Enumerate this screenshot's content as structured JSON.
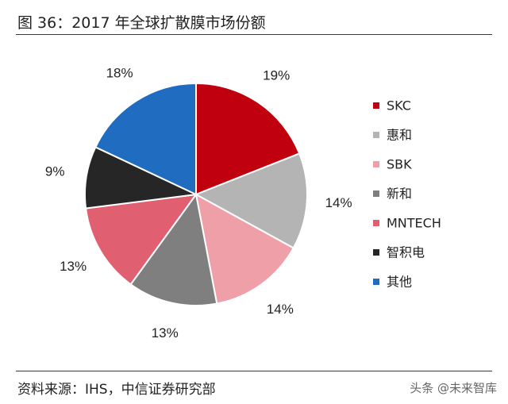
{
  "title": "图 36：2017 年全球扩散膜市场份额",
  "source": "资料来源：IHS，中信证券研究部",
  "watermark": "头条 @未来智库",
  "chart_data": {
    "type": "pie",
    "categories": [
      "SKC",
      "惠和",
      "SBK",
      "新和",
      "MNTECH",
      "智积电",
      "其他"
    ],
    "values": [
      19,
      14,
      14,
      13,
      13,
      9,
      18
    ],
    "labels": [
      "19%",
      "14%",
      "14%",
      "13%",
      "13%",
      "9%",
      "18%"
    ],
    "colors": [
      "#c0000f",
      "#b4b4b4",
      "#ef9fa7",
      "#7f7f7f",
      "#e06072",
      "#262626",
      "#1f6cc0"
    ],
    "legend_position": "right",
    "start_angle": "12 o'clock, clockwise"
  }
}
